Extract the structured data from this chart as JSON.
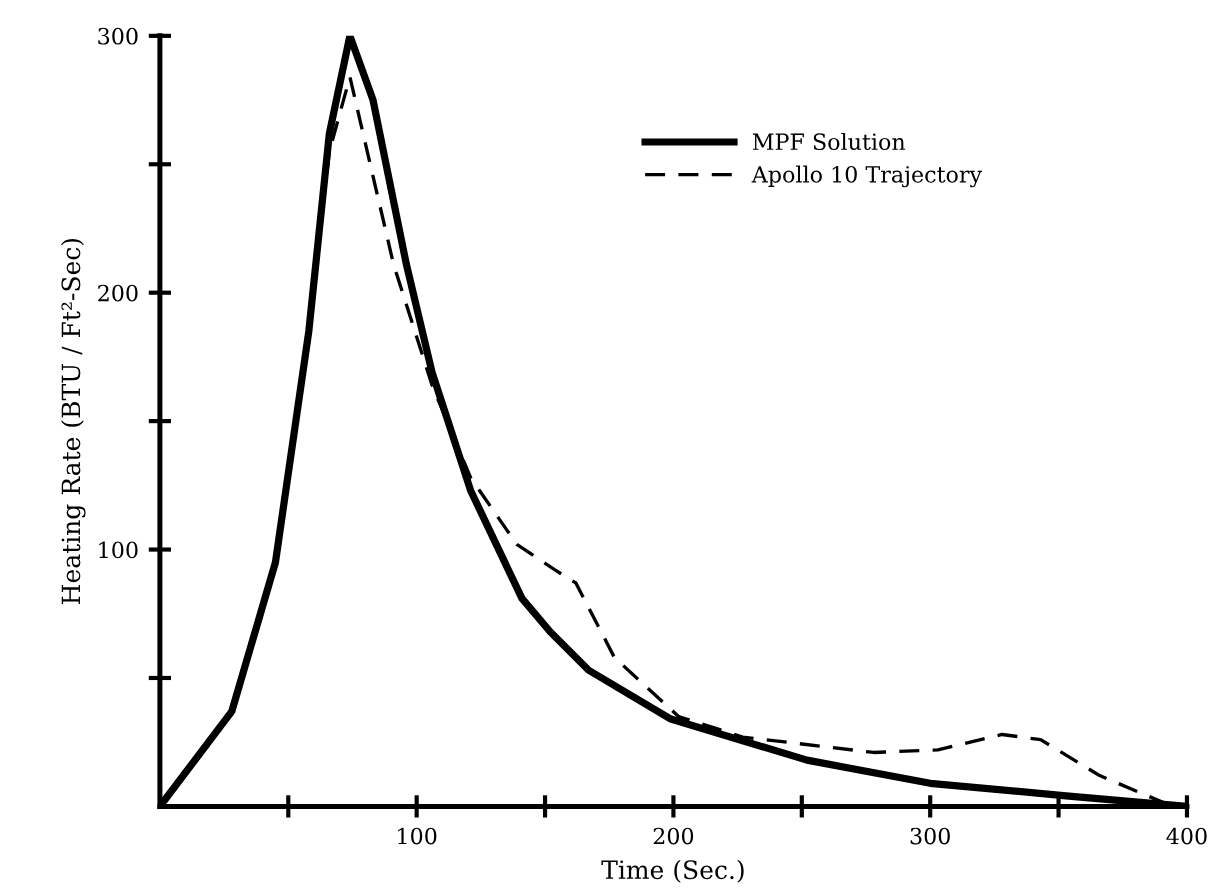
{
  "chart_data": {
    "type": "line",
    "xlabel": "Time (Sec.)",
    "ylabel": "Heating Rate (BTU / Ft²-Sec)",
    "xlim": [
      0,
      400
    ],
    "ylim": [
      0,
      300
    ],
    "xticks": [
      {
        "value": 50,
        "label": null
      },
      100,
      {
        "value": 150,
        "label": null
      },
      200,
      {
        "value": 250,
        "label": null
      },
      300,
      {
        "value": 350,
        "label": null
      },
      400
    ],
    "yticks": [
      {
        "value": 50,
        "label": null
      },
      100,
      {
        "value": 150,
        "label": null
      },
      200,
      {
        "value": 250,
        "label": null
      },
      300
    ],
    "grid": false,
    "legend": "top right",
    "marker": "none",
    "series": [
      {
        "name": "MPF Solution",
        "color": "#000000",
        "line_style": "solid",
        "x": [
          0,
          28,
          45,
          58,
          66,
          74,
          83,
          96,
          106,
          121,
          141,
          152,
          167,
          199,
          252,
          300,
          354,
          400
        ],
        "values": [
          0,
          37,
          95,
          185,
          262,
          300,
          275,
          211,
          169,
          123,
          81,
          68,
          53,
          34,
          18,
          9,
          4,
          0
        ]
      },
      {
        "name": "Apollo 10 Trajectory",
        "color": "#000000",
        "line_style": "dashed",
        "x": [
          0,
          28,
          45,
          58,
          66,
          74,
          91,
          106,
          121,
          139,
          154,
          162,
          177,
          202,
          227,
          278,
          303,
          328,
          343,
          366,
          392,
          400
        ],
        "values": [
          0,
          37,
          95,
          185,
          255,
          284,
          211,
          164,
          128,
          102,
          92,
          87,
          58,
          35,
          27,
          21,
          22,
          28,
          26,
          12,
          1,
          0
        ]
      }
    ]
  }
}
